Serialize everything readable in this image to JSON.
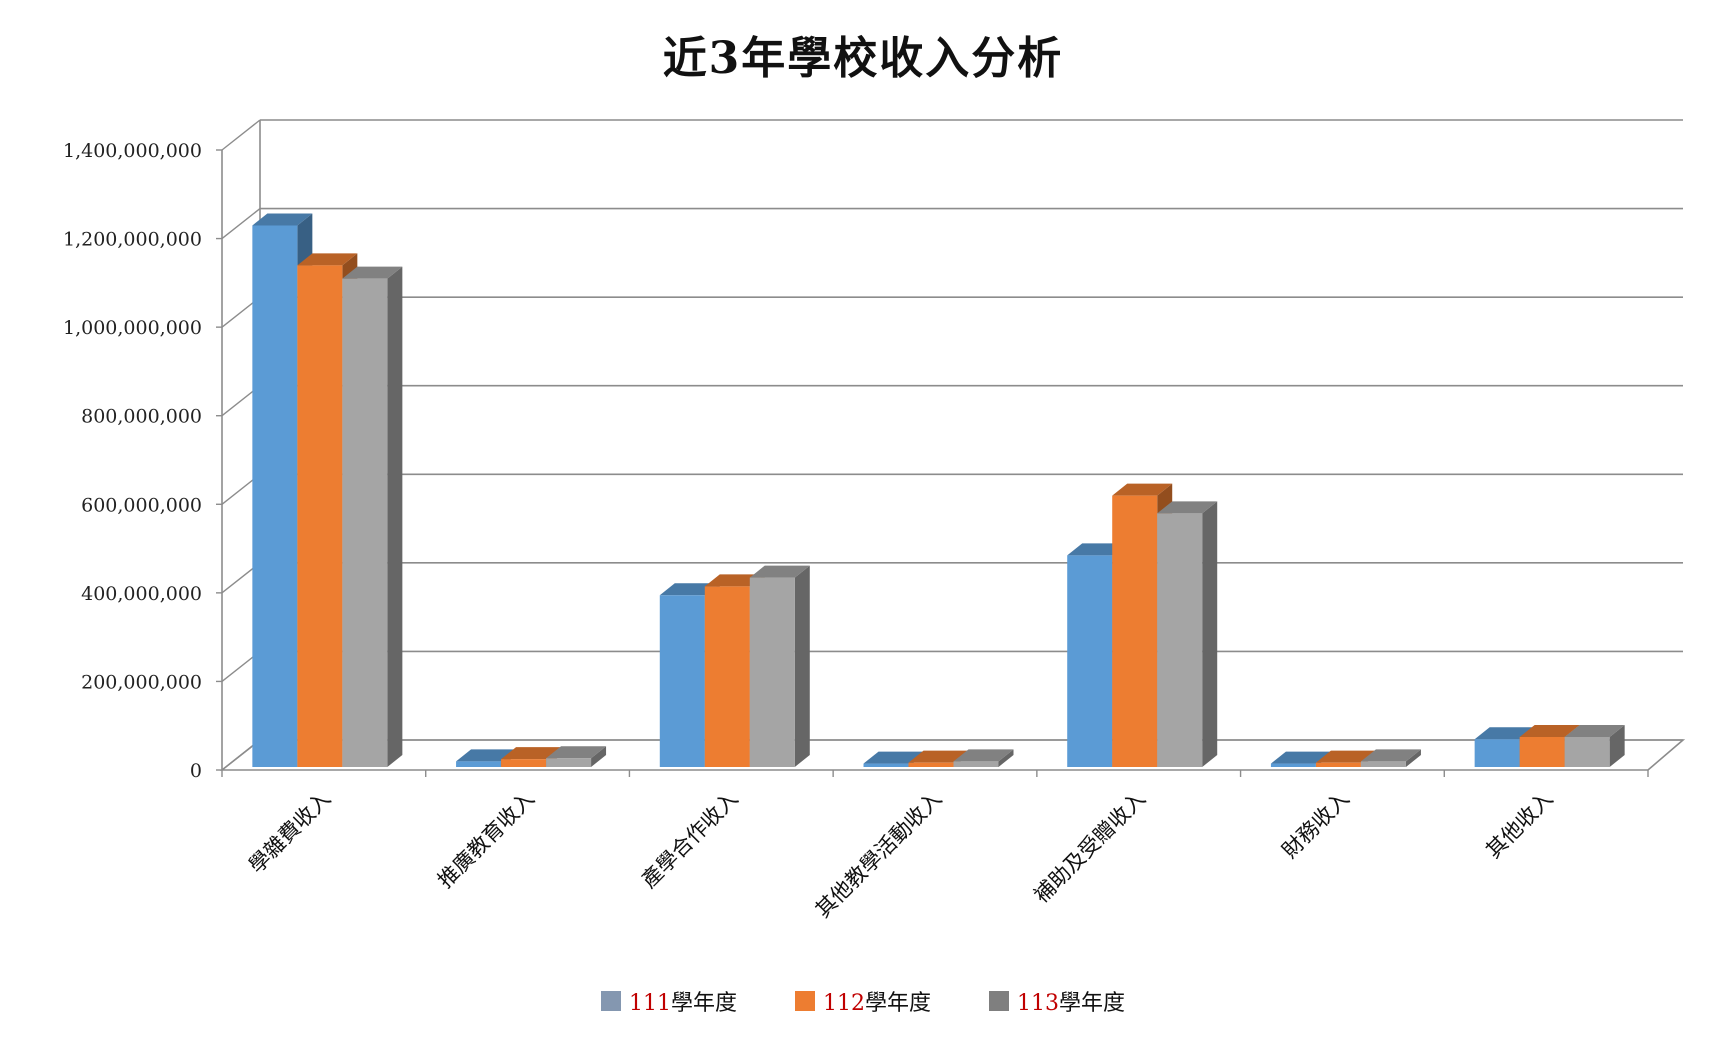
{
  "chart_data": {
    "type": "bar",
    "title": "近3年學校收入分析",
    "categories": [
      "學雜費收入",
      "推廣教育收入",
      "產學合作收入",
      "其他教學活動收入",
      "補助及受贈收入",
      "財務收入",
      "其他收入"
    ],
    "series": [
      {
        "name": "111學年度",
        "year": "111",
        "suffix": "學年度",
        "color": "#5B9BD5",
        "legend_color": "#8497B0",
        "values": [
          1225000000,
          15000000,
          390000000,
          10000000,
          480000000,
          10000000,
          65000000
        ]
      },
      {
        "name": "112學年度",
        "year": "112",
        "suffix": "學年度",
        "color": "#ED7D31",
        "legend_color": "#ED7D31",
        "values": [
          1135000000,
          20000000,
          410000000,
          12000000,
          615000000,
          12000000,
          70000000
        ]
      },
      {
        "name": "113學年度",
        "year": "113",
        "suffix": "學年度",
        "color": "#A5A5A5",
        "legend_color": "#7F7F7F",
        "values": [
          1105000000,
          22000000,
          430000000,
          15000000,
          575000000,
          15000000,
          70000000
        ]
      }
    ],
    "ylim": [
      0,
      1400000000
    ],
    "yticks": [
      "0",
      "200,000,000",
      "400,000,000",
      "600,000,000",
      "800,000,000",
      "1,000,000,000",
      "1,200,000,000",
      "1,400,000,000"
    ],
    "ytick_values": [
      0,
      200000000,
      400000000,
      600000000,
      800000000,
      1000000000,
      1200000000,
      1400000000
    ],
    "grid": true,
    "legend_position": "bottom",
    "xlabel": "",
    "ylabel": ""
  }
}
